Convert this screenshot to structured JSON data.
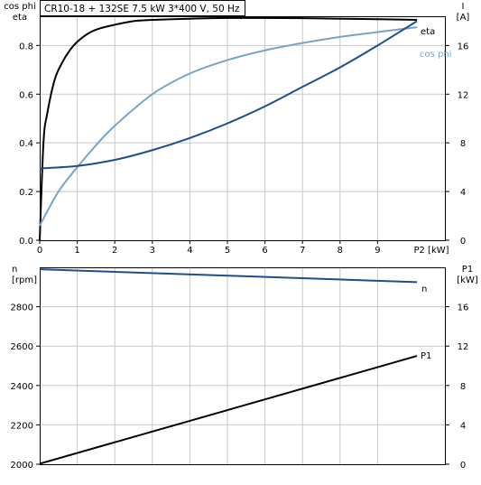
{
  "header": {
    "title": "CR10-18 + 132SE   7.5 kW   3*400 V, 50 Hz"
  },
  "colors": {
    "eta": "#000000",
    "cos_phi": "#7ba3c4",
    "current": "#1f4e8c",
    "n": "#1f4e8c",
    "p1": "#000000",
    "grid": "#c8c8c8"
  },
  "chart_data": [
    {
      "type": "line",
      "title": "CR10-18 + 132SE   7.5 kW   3*400 V, 50 Hz",
      "xlabel": "P2 [kW]",
      "xlim": [
        0,
        10.5
      ],
      "xticks": [
        "0",
        "1",
        "2",
        "3",
        "4",
        "5",
        "6",
        "7",
        "8",
        "9"
      ],
      "left_axis": {
        "label_line1": "cos phi",
        "label_line2": "eta",
        "ylim": [
          0,
          0.92
        ],
        "ticks": [
          "0.0",
          "0.2",
          "0.4",
          "0.6",
          "0.8"
        ]
      },
      "right_axis": {
        "label_line1": "I",
        "label_line2": "[A]",
        "ylim": [
          0,
          18.4
        ],
        "ticks": [
          "0",
          "4",
          "8",
          "12",
          "16"
        ]
      },
      "grid": true,
      "series": [
        {
          "name": "eta",
          "axis": "left",
          "x": [
            0,
            0.1,
            0.2,
            0.4,
            0.6,
            0.8,
            1.0,
            1.3,
            1.6,
            2.0,
            2.5,
            3.0,
            4.0,
            5.0,
            6.0,
            7.0,
            8.0,
            9.0,
            10.05
          ],
          "y": [
            0,
            0.4,
            0.52,
            0.66,
            0.73,
            0.78,
            0.815,
            0.85,
            0.87,
            0.885,
            0.9,
            0.905,
            0.91,
            0.913,
            0.913,
            0.912,
            0.91,
            0.908,
            0.905
          ]
        },
        {
          "name": "cos phi",
          "axis": "left",
          "x": [
            0,
            0.5,
            1.0,
            1.5,
            2.0,
            3.0,
            4.0,
            5.0,
            6.0,
            7.0,
            8.0,
            9.0,
            10.05
          ],
          "y": [
            0.06,
            0.2,
            0.3,
            0.39,
            0.47,
            0.6,
            0.685,
            0.74,
            0.78,
            0.81,
            0.835,
            0.855,
            0.875
          ]
        },
        {
          "name": "I",
          "axis": "right",
          "x": [
            0,
            1,
            2,
            3,
            4,
            5,
            6,
            7,
            8,
            9,
            10.05
          ],
          "y": [
            5.9,
            6.1,
            6.6,
            7.4,
            8.4,
            9.6,
            11.0,
            12.6,
            14.2,
            16.0,
            18.0
          ]
        }
      ]
    },
    {
      "type": "line",
      "xlim": [
        0,
        10.5
      ],
      "left_axis": {
        "label_line1": "n",
        "label_line2": "[rpm]",
        "ylim": [
          2000,
          3000
        ],
        "ticks": [
          "2000",
          "2200",
          "2400",
          "2600",
          "2800"
        ]
      },
      "right_axis": {
        "label_line1": "P1",
        "label_line2": "[kW]",
        "ylim": [
          0,
          20
        ],
        "ticks": [
          "0",
          "4",
          "8",
          "12",
          "16"
        ]
      },
      "grid": true,
      "series": [
        {
          "name": "n",
          "axis": "left",
          "x": [
            0,
            10.05
          ],
          "y": [
            2990,
            2925
          ]
        },
        {
          "name": "P1",
          "axis": "right",
          "x": [
            0,
            10.05
          ],
          "y": [
            0.05,
            11.0
          ]
        }
      ]
    }
  ]
}
